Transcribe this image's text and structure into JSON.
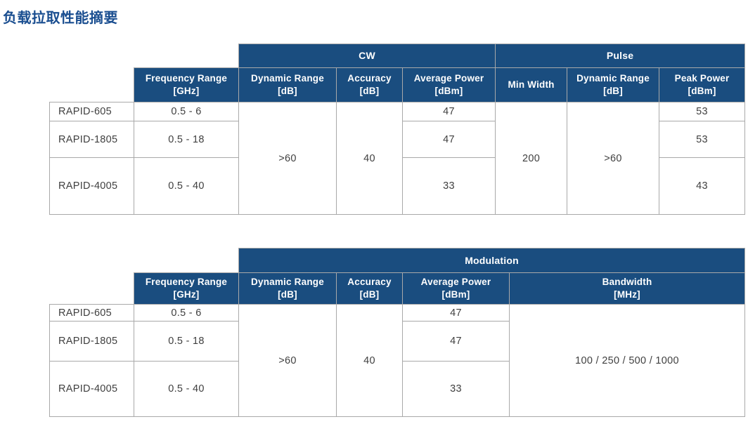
{
  "title": "负载拉取性能摘要",
  "colors": {
    "header_bg": "#1A4D7F",
    "title_text": "#1A4E90",
    "grid_line": "#A9A9A9",
    "cell_text": "#3F3F3F"
  },
  "cw_pulse_table": {
    "groups": {
      "cw": "CW",
      "pulse": "Pulse"
    },
    "columns": {
      "frequency_range": {
        "label": "Frequency Range",
        "unit": "[GHz]"
      },
      "cw_dynamic_range": {
        "label": "Dynamic Range",
        "unit": "[dB]"
      },
      "cw_accuracy": {
        "label": "Accuracy",
        "unit": "[dB]"
      },
      "cw_average_power": {
        "label": "Average Power",
        "unit": "[dBm]"
      },
      "pulse_min_width": {
        "label": "Min Width"
      },
      "pulse_dynamic_range": {
        "label": "Dynamic Range",
        "unit": "[dB]"
      },
      "pulse_peak_power": {
        "label": "Peak Power",
        "unit": "[dBm]"
      }
    },
    "rows": [
      {
        "model": "RAPID-605",
        "frequency_range": "0.5 - 6",
        "cw_average_power": "47",
        "pulse_peak_power": "53"
      },
      {
        "model": "RAPID-1805",
        "frequency_range": "0.5 - 18",
        "cw_average_power": "47",
        "pulse_peak_power": "53"
      },
      {
        "model": "RAPID-4005",
        "frequency_range": "0.5 - 40",
        "cw_average_power": "33",
        "pulse_peak_power": "43"
      }
    ],
    "merged_values": {
      "cw_dynamic_range": ">60",
      "cw_accuracy": "40",
      "pulse_min_width": "200",
      "pulse_dynamic_range": ">60"
    }
  },
  "modulation_table": {
    "groups": {
      "modulation": "Modulation"
    },
    "columns": {
      "frequency_range": {
        "label": "Frequency Range",
        "unit": "[GHz]"
      },
      "dynamic_range": {
        "label": "Dynamic Range",
        "unit": "[dB]"
      },
      "accuracy": {
        "label": "Accuracy",
        "unit": "[dB]"
      },
      "average_power": {
        "label": "Average Power",
        "unit": "[dBm]"
      },
      "bandwidth": {
        "label": "Bandwidth",
        "unit": "[MHz]"
      }
    },
    "rows": [
      {
        "model": "RAPID-605",
        "frequency_range": "0.5 - 6",
        "average_power": "47"
      },
      {
        "model": "RAPID-1805",
        "frequency_range": "0.5 - 18",
        "average_power": "47"
      },
      {
        "model": "RAPID-4005",
        "frequency_range": "0.5 - 40",
        "average_power": "33"
      }
    ],
    "merged_values": {
      "dynamic_range": ">60",
      "accuracy": "40",
      "bandwidth": "100 / 250 / 500 / 1000"
    }
  }
}
